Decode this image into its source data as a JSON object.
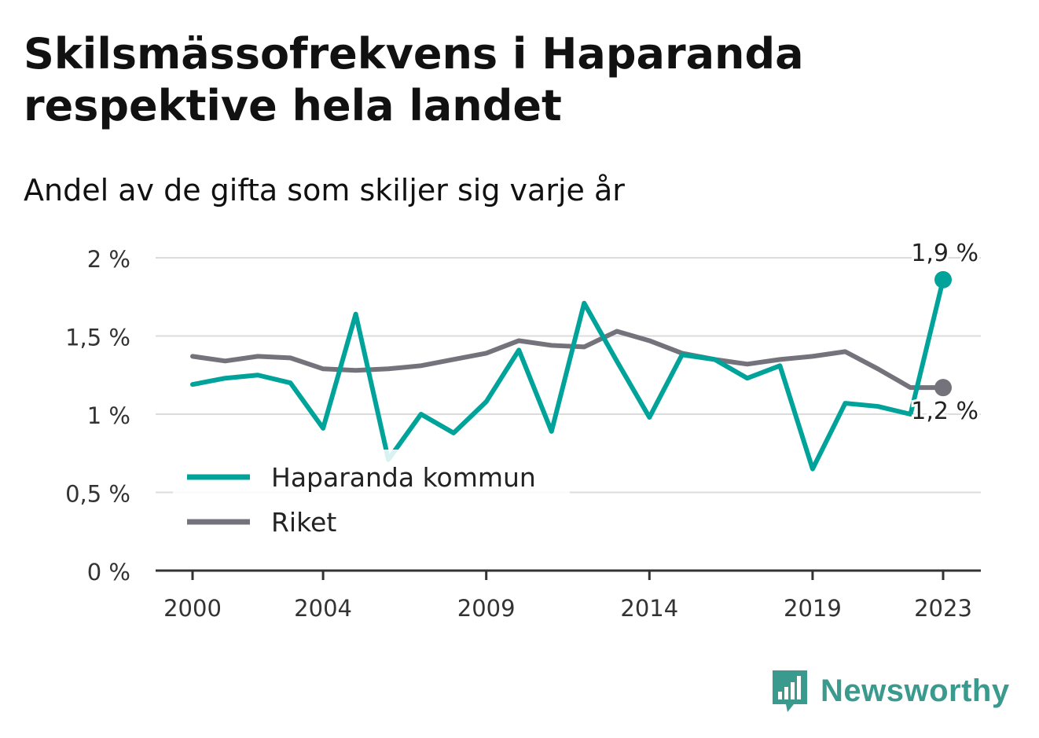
{
  "title": "Skilsmässofrekvens i Haparanda respektive hela landet",
  "subtitle": "Andel av de gifta som skiljer sig varje år",
  "brand": {
    "name": "Newsworthy",
    "color": "#3a9a8e",
    "icon": "bar-chart-logo-icon"
  },
  "chart_data": {
    "type": "line",
    "x": [
      2000,
      2001,
      2002,
      2003,
      2004,
      2005,
      2006,
      2007,
      2008,
      2009,
      2010,
      2011,
      2012,
      2013,
      2014,
      2015,
      2016,
      2017,
      2018,
      2019,
      2020,
      2021,
      2022,
      2023
    ],
    "x_ticks": [
      2000,
      2004,
      2009,
      2014,
      2019,
      2023
    ],
    "ylim": [
      0,
      2
    ],
    "y_ticks": [
      0,
      0.5,
      1,
      1.5,
      2
    ],
    "y_tick_labels": [
      "0 %",
      "0,5 %",
      "1 %",
      "1,5 %",
      "2 %"
    ],
    "grid": true,
    "legend_position": "bottom-left",
    "series": [
      {
        "name": "Haparanda kommun",
        "color": "#00a39a",
        "values": [
          1.19,
          1.23,
          1.25,
          1.2,
          0.91,
          1.64,
          0.71,
          1.0,
          0.88,
          1.08,
          1.41,
          0.89,
          1.71,
          1.34,
          0.98,
          1.38,
          1.35,
          1.23,
          1.31,
          0.65,
          1.07,
          1.05,
          1.0,
          1.86
        ],
        "end_label": "1,9 %"
      },
      {
        "name": "Riket",
        "color": "#74737b",
        "values": [
          1.37,
          1.34,
          1.37,
          1.36,
          1.29,
          1.28,
          1.29,
          1.31,
          1.35,
          1.39,
          1.47,
          1.44,
          1.43,
          1.53,
          1.47,
          1.39,
          1.35,
          1.32,
          1.35,
          1.37,
          1.4,
          1.29,
          1.17,
          1.17
        ],
        "end_label": "1,2 %"
      }
    ]
  }
}
